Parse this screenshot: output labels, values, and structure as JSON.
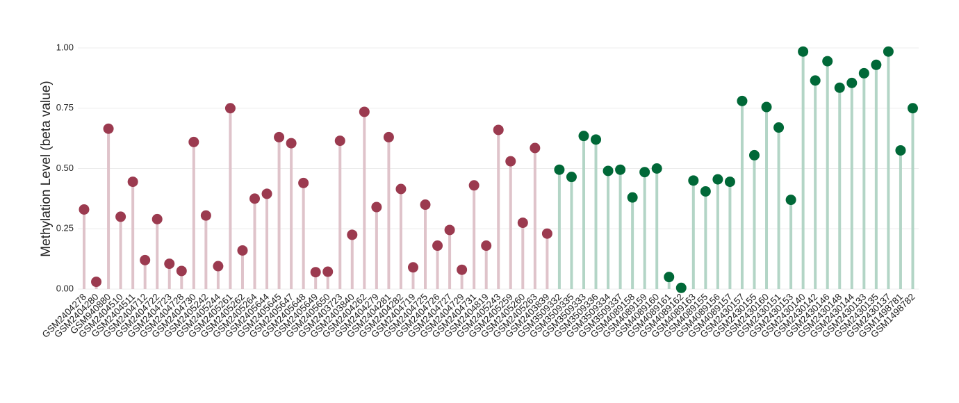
{
  "chart_data": {
    "type": "lollipop",
    "y_label": "Methylation Level (beta value)",
    "ylim": [
      -0.03,
      1.1
    ],
    "yticks": [
      {
        "value": 0,
        "label": "0.00"
      },
      {
        "value": 0.25,
        "label": "0.25"
      },
      {
        "value": 0.5,
        "label": "0.50"
      },
      {
        "value": 0.75,
        "label": "0.75"
      },
      {
        "value": 1,
        "label": "1.00"
      }
    ],
    "grid": true,
    "groups": [
      {
        "color": "#9b3a4f",
        "stem_color": "#dfc3ca",
        "categories": [
          "GSM2404278",
          "GSM2404280",
          "GSM940880",
          "GSM2404510",
          "GSM2404511",
          "GSM2404712",
          "GSM2404722",
          "GSM2404723",
          "GSM2404728",
          "GSM2404730",
          "GSM2405242",
          "GSM2405244",
          "GSM2405261",
          "GSM2405262",
          "GSM2405264",
          "GSM2405644",
          "GSM2405645",
          "GSM2405647",
          "GSM2405648",
          "GSM2405649",
          "GSM2405650",
          "GSM2403723",
          "GSM2403840",
          "GSM2404262",
          "GSM2404279",
          "GSM2404281",
          "GSM2404282",
          "GSM2404719",
          "GSM2404725",
          "GSM2404726",
          "GSM2404727",
          "GSM2404729",
          "GSM2404731",
          "GSM2404819",
          "GSM2405243",
          "GSM2405259",
          "GSM2405260",
          "GSM2405263",
          "GSM2403839"
        ],
        "values": [
          0.33,
          0.03,
          0.665,
          0.3,
          0.445,
          0.12,
          0.29,
          0.105,
          0.075,
          0.61,
          0.305,
          0.095,
          0.75,
          0.16,
          0.375,
          0.395,
          0.63,
          0.605,
          0.44,
          0.07,
          0.072,
          0.615,
          0.225,
          0.735,
          0.34,
          0.63,
          0.415,
          0.09,
          0.35,
          0.18,
          0.245,
          0.08,
          0.43,
          0.18,
          0.66,
          0.53,
          0.275,
          0.585,
          0.23
        ]
      },
      {
        "color": "#006837",
        "stem_color": "#b3d5c6",
        "categories": [
          "GSM3509332",
          "GSM3509335",
          "GSM3509333",
          "GSM3509336",
          "GSM3509334",
          "GSM3509337",
          "GSM4089158",
          "GSM4089159",
          "GSM4089160",
          "GSM4089161",
          "GSM4089162",
          "GSM4089163",
          "GSM4089155",
          "GSM4089156",
          "GSM4089157",
          "GSM2430157",
          "GSM2430155",
          "GSM2430160",
          "GSM2430151",
          "GSM2430153",
          "GSM2430140",
          "GSM2430142",
          "GSM2430146",
          "GSM2430148",
          "GSM2430144",
          "GSM2430133",
          "GSM2430135",
          "GSM2430137",
          "GSM1498781",
          "GSM1498782"
        ],
        "values": [
          0.495,
          0.465,
          0.635,
          0.62,
          0.49,
          0.495,
          0.38,
          0.485,
          0.5,
          0.05,
          0.005,
          0.45,
          0.405,
          0.455,
          0.445,
          0.78,
          0.555,
          0.755,
          0.67,
          0.37,
          0.985,
          0.865,
          0.945,
          0.835,
          0.855,
          0.895,
          0.93,
          0.985,
          0.575,
          0.75
        ]
      }
    ]
  }
}
